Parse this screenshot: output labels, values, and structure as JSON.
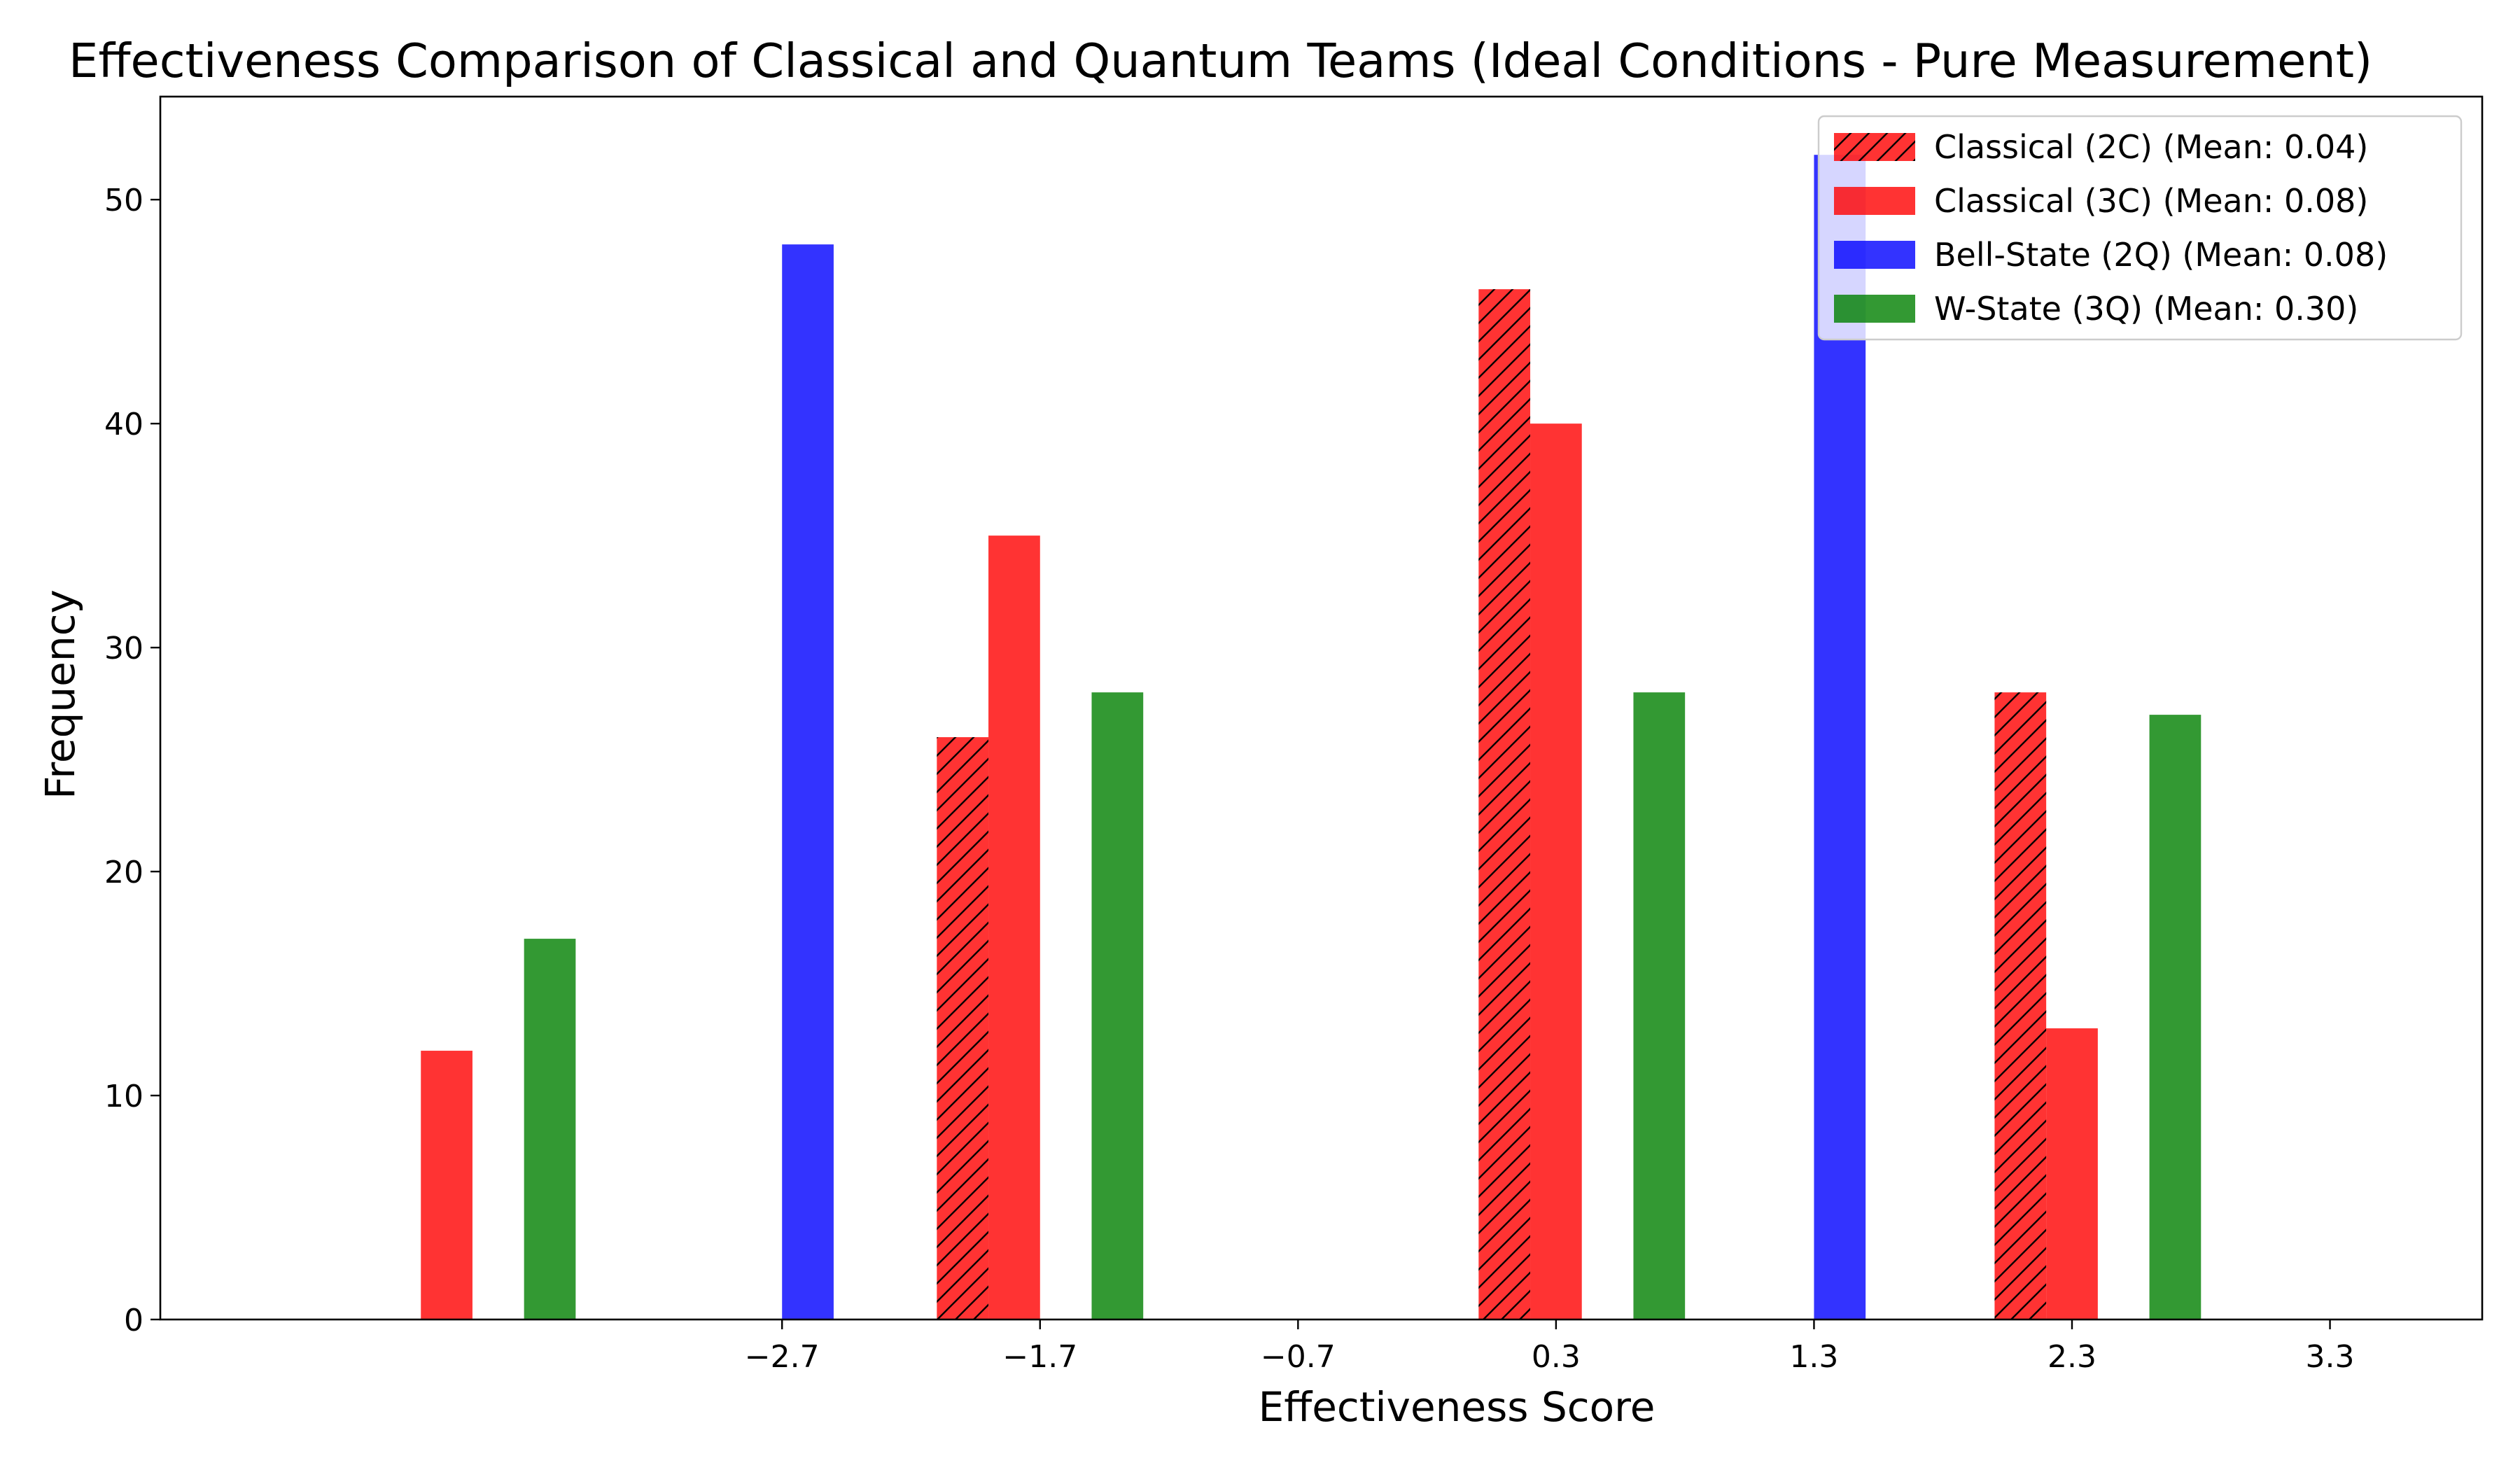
{
  "chart_data": {
    "type": "bar",
    "title": "Effectiveness Comparison of Classical and Quantum Teams (Ideal Conditions - Pure Measurement)",
    "xlabel": "Effectiveness Score",
    "ylabel": "Frequency",
    "xlim": [
      -5.11,
      3.89
    ],
    "ylim": [
      0,
      54.6
    ],
    "xticks": [
      -2.7,
      -1.7,
      -0.7,
      0.3,
      1.3,
      2.3,
      3.3
    ],
    "xtick_labels": [
      "−2.7",
      "−1.7",
      "−0.7",
      "0.3",
      "1.3",
      "2.3",
      "3.3"
    ],
    "yticks": [
      0,
      10,
      20,
      30,
      40,
      50
    ],
    "ytick_labels": [
      "0",
      "10",
      "20",
      "30",
      "40",
      "50"
    ],
    "bar_width": 0.2,
    "legend_position": "top-right",
    "series": [
      {
        "name": "Classical (2C) (Mean: 0.04)",
        "color": "#ff0000",
        "hatch": true,
        "x": [
          -2.1,
          0.0,
          2.0
        ],
        "values": [
          26,
          46,
          28
        ]
      },
      {
        "name": "Classical (3C) (Mean: 0.08)",
        "color": "#ff0000",
        "hatch": false,
        "x": [
          -4.1,
          -1.9,
          0.2,
          2.2
        ],
        "values": [
          12,
          35,
          40,
          13
        ]
      },
      {
        "name": "Bell-State (2Q) (Mean: 0.08)",
        "color": "#0000ff",
        "hatch": false,
        "x": [
          -2.7,
          1.3
        ],
        "values": [
          48,
          52
        ]
      },
      {
        "name": "W-State (3Q) (Mean: 0.30)",
        "color": "#008000",
        "hatch": false,
        "x": [
          -3.7,
          -1.5,
          0.6,
          2.6
        ],
        "values": [
          17,
          28,
          28,
          27
        ]
      }
    ]
  }
}
